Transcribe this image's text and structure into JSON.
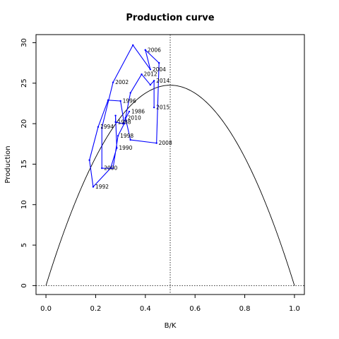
{
  "chart_data": {
    "type": "line",
    "title": "Production curve",
    "xlabel": "B/K",
    "ylabel": "Production",
    "xlim": [
      -0.04,
      1.04
    ],
    "ylim": [
      -1.1,
      31.0
    ],
    "xticks": [
      "0.0",
      "0.2",
      "0.4",
      "0.6",
      "0.8",
      "1.0"
    ],
    "yticks": [
      "0",
      "5",
      "10",
      "15",
      "20",
      "25",
      "30"
    ],
    "grid": false,
    "reference_lines": {
      "bmsy": 0.5,
      "zero": 0
    },
    "curve": {
      "r": 99,
      "K": 1,
      "description": "parabola with maximum 24.75 at B/K = 0.5"
    },
    "series": [
      {
        "color": "#0000ff",
        "points": [
          {
            "year": "1986",
            "x": 0.335,
            "y": 21.5
          },
          {
            "year": "",
            "x": 0.31,
            "y": 20.0
          },
          {
            "year": "1988",
            "x": 0.28,
            "y": 20.2
          },
          {
            "year": "",
            "x": 0.28,
            "y": 21.0
          },
          {
            "year": "1990",
            "x": 0.285,
            "y": 17.0
          },
          {
            "year": "",
            "x": 0.26,
            "y": 14.5
          },
          {
            "year": "1992",
            "x": 0.19,
            "y": 12.2
          },
          {
            "year": "",
            "x": 0.175,
            "y": 15.5
          },
          {
            "year": "1994",
            "x": 0.21,
            "y": 19.6
          },
          {
            "year": "",
            "x": 0.25,
            "y": 22.9
          },
          {
            "year": "1996",
            "x": 0.3,
            "y": 22.8
          },
          {
            "year": "",
            "x": 0.315,
            "y": 20.0
          },
          {
            "year": "1998",
            "x": 0.29,
            "y": 18.5
          },
          {
            "year": "",
            "x": 0.27,
            "y": 14.5
          },
          {
            "year": "2000",
            "x": 0.225,
            "y": 14.5
          },
          {
            "year": "",
            "x": 0.225,
            "y": 19.5
          },
          {
            "year": "2002",
            "x": 0.27,
            "y": 25.1
          },
          {
            "year": "",
            "x": 0.35,
            "y": 29.7
          },
          {
            "year": "2004",
            "x": 0.42,
            "y": 26.7
          },
          {
            "year": "",
            "x": 0.4,
            "y": 29.1
          },
          {
            "year": "2006",
            "x": 0.4,
            "y": 29.1
          },
          {
            "year": "",
            "x": 0.455,
            "y": 27.5
          },
          {
            "year": "2008",
            "x": 0.445,
            "y": 17.6
          },
          {
            "year": "",
            "x": 0.34,
            "y": 18.0
          },
          {
            "year": "2010",
            "x": 0.32,
            "y": 20.7
          },
          {
            "year": "",
            "x": 0.34,
            "y": 23.8
          },
          {
            "year": "2012",
            "x": 0.385,
            "y": 26.1
          },
          {
            "year": "",
            "x": 0.42,
            "y": 24.8
          },
          {
            "year": "2014",
            "x": 0.435,
            "y": 25.3
          },
          {
            "year": "2015",
            "x": 0.435,
            "y": 22.0
          }
        ]
      }
    ]
  }
}
